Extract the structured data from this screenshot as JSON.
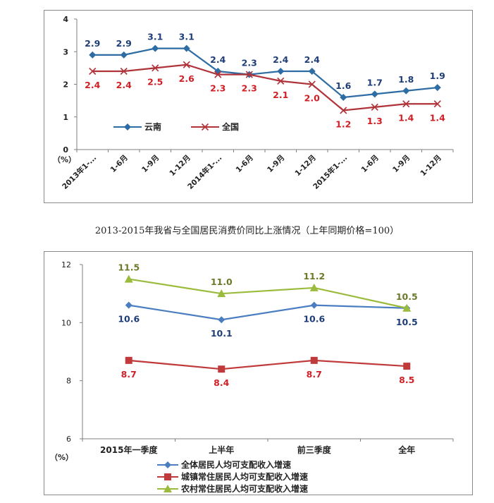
{
  "chart_data": [
    {
      "type": "line",
      "y_unit": "（%）",
      "ylim": [
        0,
        4
      ],
      "yticks": [
        "0",
        "1",
        "2",
        "3",
        "4"
      ],
      "categories": [
        "2013年1-...",
        "1-6月",
        "1-9月",
        "1-12月",
        "2014年1-...",
        "1-6月",
        "1-9月",
        "1-12月",
        "2015年1-...",
        "1-6月",
        "1-9月",
        "1-12月"
      ],
      "legend_position": "bottom-left",
      "series": [
        {
          "name": "云南",
          "color": "#2e6da4",
          "label_color": "#1f3e78",
          "marker": "diamond",
          "values": [
            2.9,
            2.9,
            3.1,
            3.1,
            2.4,
            2.3,
            2.4,
            2.4,
            1.6,
            1.7,
            1.8,
            1.9
          ],
          "labels": [
            "2.9",
            "2.9",
            "3.1",
            "3.1",
            "2.4",
            "2.3",
            "2.4",
            "2.4",
            "1.6",
            "1.7",
            "1.8",
            "1.9"
          ]
        },
        {
          "name": "全国",
          "color": "#b0333a",
          "label_color": "#d11f26",
          "marker": "x",
          "values": [
            2.4,
            2.4,
            2.5,
            2.6,
            2.3,
            2.3,
            2.1,
            2.0,
            1.2,
            1.3,
            1.4,
            1.4
          ],
          "labels": [
            "2.4",
            "2.4",
            "2.5",
            "2.6",
            "2.3",
            "2.3",
            "2.1",
            "2.0",
            "1.2",
            "1.3",
            "1.4",
            "1.4"
          ]
        }
      ]
    },
    {
      "type": "line",
      "y_unit": "（%）",
      "ylim": [
        6,
        12
      ],
      "yticks": [
        "6",
        "8",
        "10",
        "12"
      ],
      "categories": [
        "2015年一季度",
        "上半年",
        "前三季度",
        "全年"
      ],
      "legend_position": "bottom",
      "series": [
        {
          "name": "全体居民人均可支配收入增速",
          "color": "#4a7ec0",
          "label_color": "#1f3e78",
          "marker": "diamond",
          "values": [
            10.6,
            10.1,
            10.6,
            10.5
          ],
          "labels": [
            "10.6",
            "10.1",
            "10.6",
            "10.5"
          ]
        },
        {
          "name": "城镇常住居民人均可支配收入增速",
          "color": "#c0393b",
          "label_color": "#d11f26",
          "marker": "square",
          "values": [
            8.7,
            8.4,
            8.7,
            8.5
          ],
          "labels": [
            "8.7",
            "8.4",
            "8.7",
            "8.5"
          ]
        },
        {
          "name": "农村常住居民人均可支配收入增速",
          "color": "#9bbb3c",
          "label_color": "#6b7a2a",
          "marker": "triangle",
          "values": [
            11.5,
            11.0,
            11.2,
            10.5
          ],
          "labels": [
            "11.5",
            "11.0",
            "11.2",
            "10.5"
          ]
        }
      ]
    }
  ],
  "caption": "2013-2015年我省与全国居民消费价同比上涨情况（上年同期价格=100）"
}
